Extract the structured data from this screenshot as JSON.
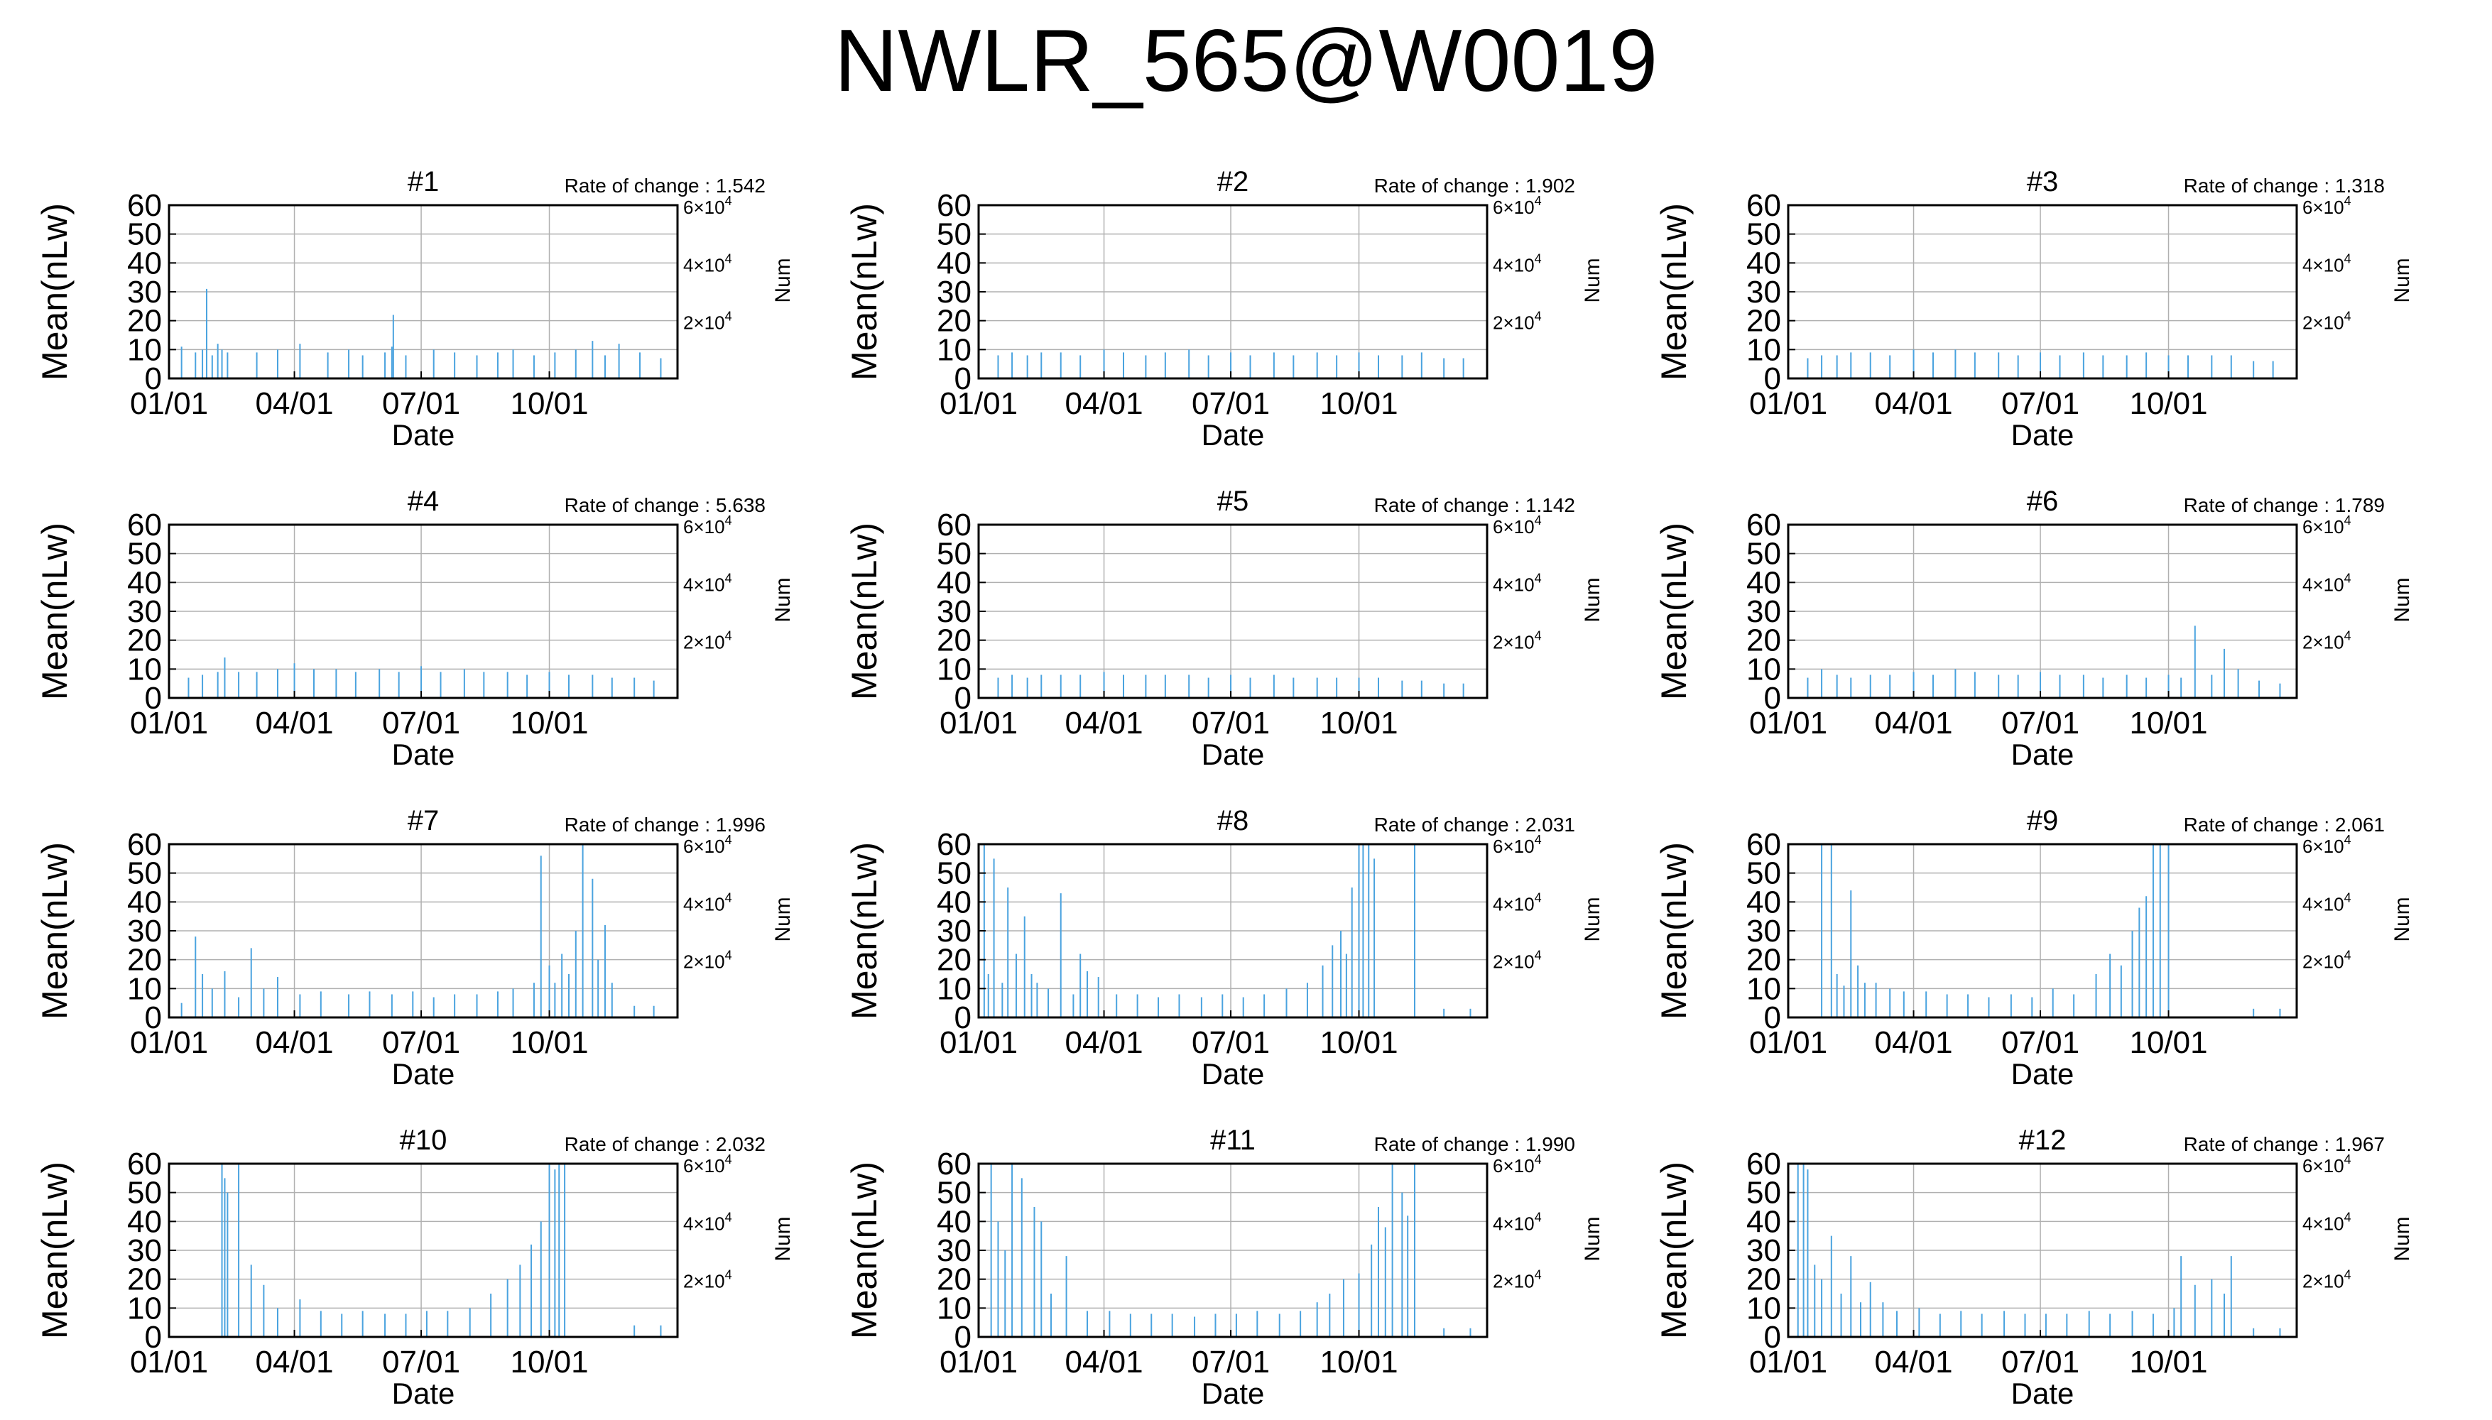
{
  "title": "NWLR_565@W0019",
  "colors": {
    "bar": "#4aa3df",
    "axis": "#000000",
    "grid": "#b0b0b0",
    "text": "#000000"
  },
  "shared_axes": {
    "xlabel": "Date",
    "ylabel": "Mean(nLw)",
    "y2label": "Num",
    "x_ticks": [
      "01/01",
      "04/01",
      "07/01",
      "10/01"
    ],
    "y_ticks": [
      "0",
      "10",
      "20",
      "30",
      "40",
      "50",
      "60"
    ],
    "y2_ticks": [
      {
        "base": "2×10",
        "exp": "4"
      },
      {
        "base": "4×10",
        "exp": "4"
      },
      {
        "base": "6×10",
        "exp": "4"
      }
    ],
    "ylim": [
      0,
      60
    ],
    "y2lim": [
      0,
      60000
    ],
    "grid": true
  },
  "chart_data": [
    {
      "type": "bar",
      "title": "#1",
      "rate_label": "Rate of change : 1.542",
      "x": [
        "01-10",
        "01-20",
        "01-25",
        "01-28",
        "02-01",
        "02-05",
        "02-08",
        "02-12",
        "03-05",
        "03-20",
        "04-05",
        "04-25",
        "05-10",
        "05-20",
        "06-05",
        "06-10",
        "06-11",
        "06-20",
        "07-10",
        "07-25",
        "08-10",
        "08-25",
        "09-05",
        "09-20",
        "10-05",
        "10-20",
        "11-01",
        "11-10",
        "11-20",
        "12-05",
        "12-20"
      ],
      "y": [
        11,
        9,
        10,
        31,
        8,
        12,
        10,
        9,
        9,
        10,
        12,
        9,
        10,
        8,
        9,
        11,
        22,
        8,
        10,
        9,
        8,
        9,
        10,
        8,
        9,
        10,
        13,
        8,
        12,
        9,
        7
      ]
    },
    {
      "type": "bar",
      "title": "#2",
      "rate_label": "Rate of change : 1.902",
      "x": [
        "01-15",
        "01-25",
        "02-05",
        "02-15",
        "03-01",
        "03-15",
        "04-01",
        "04-15",
        "05-01",
        "05-15",
        "06-01",
        "06-15",
        "07-01",
        "07-15",
        "08-01",
        "08-15",
        "09-01",
        "09-15",
        "10-01",
        "10-15",
        "11-01",
        "11-15",
        "12-01",
        "12-15"
      ],
      "y": [
        8,
        9,
        8,
        9,
        9,
        8,
        10,
        9,
        8,
        9,
        10,
        8,
        9,
        8,
        9,
        8,
        9,
        8,
        9,
        8,
        8,
        9,
        7,
        7
      ]
    },
    {
      "type": "bar",
      "title": "#3",
      "rate_label": "Rate of change : 1.318",
      "x": [
        "01-15",
        "01-25",
        "02-05",
        "02-15",
        "03-01",
        "03-15",
        "04-01",
        "04-15",
        "05-01",
        "05-15",
        "06-01",
        "06-15",
        "07-01",
        "07-15",
        "08-01",
        "08-15",
        "09-01",
        "09-15",
        "10-01",
        "10-15",
        "11-01",
        "11-15",
        "12-01",
        "12-15"
      ],
      "y": [
        7,
        8,
        8,
        9,
        9,
        8,
        10,
        9,
        10,
        9,
        9,
        8,
        9,
        8,
        9,
        8,
        8,
        9,
        8,
        8,
        8,
        8,
        6,
        6
      ]
    },
    {
      "type": "bar",
      "title": "#4",
      "rate_label": "Rate of change : 5.638",
      "x": [
        "01-15",
        "01-25",
        "02-05",
        "02-10",
        "02-20",
        "03-05",
        "03-20",
        "04-01",
        "04-15",
        "05-01",
        "05-15",
        "06-01",
        "06-15",
        "07-01",
        "07-15",
        "08-01",
        "08-15",
        "09-01",
        "09-15",
        "10-01",
        "10-15",
        "11-01",
        "11-15",
        "12-01",
        "12-15"
      ],
      "y": [
        7,
        8,
        9,
        14,
        9,
        9,
        10,
        12,
        10,
        10,
        9,
        10,
        9,
        11,
        9,
        10,
        9,
        9,
        8,
        9,
        8,
        8,
        7,
        7,
        6
      ]
    },
    {
      "type": "bar",
      "title": "#5",
      "rate_label": "Rate of change : 1.142",
      "x": [
        "01-15",
        "01-25",
        "02-05",
        "02-15",
        "03-01",
        "03-15",
        "04-01",
        "04-15",
        "05-01",
        "05-15",
        "06-01",
        "06-15",
        "07-01",
        "07-15",
        "08-01",
        "08-15",
        "09-01",
        "09-15",
        "10-01",
        "10-15",
        "11-01",
        "11-15",
        "12-01",
        "12-15"
      ],
      "y": [
        7,
        8,
        7,
        8,
        8,
        8,
        9,
        8,
        8,
        8,
        8,
        7,
        8,
        7,
        8,
        7,
        7,
        7,
        7,
        7,
        6,
        6,
        5,
        5
      ]
    },
    {
      "type": "bar",
      "title": "#6",
      "rate_label": "Rate of change : 1.789",
      "x": [
        "01-15",
        "01-25",
        "02-05",
        "02-15",
        "03-01",
        "03-15",
        "04-01",
        "04-15",
        "05-01",
        "05-15",
        "06-01",
        "06-15",
        "07-01",
        "07-15",
        "08-01",
        "08-15",
        "09-01",
        "09-15",
        "10-01",
        "10-10",
        "10-20",
        "11-01",
        "11-10",
        "11-20",
        "12-05",
        "12-20"
      ],
      "y": [
        7,
        10,
        8,
        7,
        8,
        8,
        9,
        8,
        10,
        9,
        8,
        8,
        9,
        8,
        8,
        7,
        8,
        7,
        8,
        7,
        25,
        8,
        17,
        10,
        6,
        5
      ]
    },
    {
      "type": "bar",
      "title": "#7",
      "rate_label": "Rate of change : 1.996",
      "x": [
        "01-10",
        "01-20",
        "01-25",
        "02-01",
        "02-10",
        "02-20",
        "03-01",
        "03-10",
        "03-20",
        "04-05",
        "04-20",
        "05-10",
        "05-25",
        "06-10",
        "06-25",
        "07-10",
        "07-25",
        "08-10",
        "08-25",
        "09-05",
        "09-20",
        "09-25",
        "10-01",
        "10-05",
        "10-10",
        "10-15",
        "10-20",
        "10-25",
        "11-01",
        "11-05",
        "11-10",
        "11-15",
        "12-01",
        "12-15"
      ],
      "y": [
        5,
        28,
        15,
        10,
        16,
        7,
        24,
        10,
        14,
        8,
        9,
        8,
        9,
        8,
        9,
        7,
        8,
        8,
        9,
        10,
        12,
        56,
        18,
        12,
        22,
        15,
        30,
        60,
        48,
        20,
        32,
        12,
        4,
        4
      ]
    },
    {
      "type": "bar",
      "title": "#8",
      "rate_label": "Rate of change : 2.031",
      "x": [
        "01-05",
        "01-08",
        "01-12",
        "01-18",
        "01-22",
        "01-28",
        "02-03",
        "02-08",
        "02-12",
        "02-20",
        "03-01",
        "03-10",
        "03-15",
        "03-20",
        "03-28",
        "04-10",
        "04-25",
        "05-10",
        "05-25",
        "06-10",
        "06-25",
        "07-10",
        "07-25",
        "08-10",
        "08-25",
        "09-05",
        "09-12",
        "09-18",
        "09-22",
        "09-26",
        "10-01",
        "10-04",
        "10-08",
        "10-12",
        "11-10",
        "12-01",
        "12-20"
      ],
      "y": [
        60,
        15,
        55,
        12,
        45,
        22,
        35,
        15,
        12,
        10,
        43,
        8,
        22,
        16,
        14,
        8,
        8,
        7,
        8,
        7,
        8,
        7,
        8,
        10,
        12,
        18,
        25,
        30,
        22,
        45,
        60,
        60,
        60,
        55,
        60,
        3,
        3
      ]
    },
    {
      "type": "bar",
      "title": "#9",
      "rate_label": "Rate of change : 2.061",
      "x": [
        "01-25",
        "02-01",
        "02-05",
        "02-10",
        "02-15",
        "02-20",
        "02-25",
        "03-05",
        "03-15",
        "03-25",
        "04-10",
        "04-25",
        "05-10",
        "05-25",
        "06-10",
        "06-25",
        "07-10",
        "07-25",
        "08-10",
        "08-20",
        "08-28",
        "09-05",
        "09-10",
        "09-15",
        "09-20",
        "09-25",
        "10-01",
        "12-01",
        "12-20"
      ],
      "y": [
        60,
        60,
        15,
        11,
        44,
        18,
        12,
        12,
        10,
        9,
        9,
        8,
        8,
        7,
        8,
        7,
        10,
        8,
        15,
        22,
        18,
        30,
        38,
        42,
        60,
        60,
        60,
        3,
        3
      ]
    },
    {
      "type": "bar",
      "title": "#10",
      "rate_label": "Rate of change : 2.032",
      "x": [
        "02-08",
        "02-10",
        "02-12",
        "02-20",
        "03-01",
        "03-10",
        "03-20",
        "04-05",
        "04-20",
        "05-05",
        "05-20",
        "06-05",
        "06-20",
        "07-05",
        "07-20",
        "08-05",
        "08-20",
        "09-01",
        "09-10",
        "09-18",
        "09-25",
        "10-01",
        "10-05",
        "10-08",
        "10-12",
        "12-01",
        "12-20"
      ],
      "y": [
        60,
        55,
        50,
        60,
        25,
        18,
        10,
        13,
        9,
        8,
        9,
        8,
        8,
        9,
        9,
        10,
        15,
        20,
        25,
        32,
        40,
        60,
        58,
        60,
        60,
        4,
        4
      ]
    },
    {
      "type": "bar",
      "title": "#11",
      "rate_label": "Rate of change : 1.990",
      "x": [
        "01-10",
        "01-15",
        "01-20",
        "01-25",
        "02-01",
        "02-10",
        "02-15",
        "02-22",
        "03-05",
        "03-20",
        "04-05",
        "04-20",
        "05-05",
        "05-20",
        "06-05",
        "06-20",
        "07-05",
        "07-20",
        "08-05",
        "08-20",
        "09-01",
        "09-10",
        "09-20",
        "10-01",
        "10-10",
        "10-15",
        "10-20",
        "10-25",
        "11-01",
        "11-05",
        "11-10",
        "12-01",
        "12-20"
      ],
      "y": [
        60,
        40,
        30,
        60,
        55,
        45,
        40,
        15,
        28,
        9,
        9,
        8,
        8,
        8,
        7,
        8,
        8,
        9,
        8,
        9,
        12,
        15,
        20,
        22,
        32,
        45,
        38,
        60,
        50,
        42,
        60,
        3,
        3
      ]
    },
    {
      "type": "bar",
      "title": "#12",
      "rate_label": "Rate of change : 1.967",
      "x": [
        "01-08",
        "01-12",
        "01-15",
        "01-20",
        "01-25",
        "02-01",
        "02-08",
        "02-15",
        "02-22",
        "03-01",
        "03-10",
        "03-20",
        "04-05",
        "04-20",
        "05-05",
        "05-20",
        "06-05",
        "06-20",
        "07-05",
        "07-20",
        "08-05",
        "08-20",
        "09-05",
        "09-20",
        "10-05",
        "10-10",
        "10-20",
        "11-01",
        "11-10",
        "11-15",
        "12-01",
        "12-20"
      ],
      "y": [
        60,
        60,
        58,
        25,
        20,
        35,
        15,
        28,
        12,
        19,
        12,
        9,
        10,
        8,
        9,
        8,
        9,
        8,
        8,
        8,
        9,
        8,
        9,
        8,
        10,
        28,
        18,
        20,
        15,
        28,
        3,
        3
      ]
    }
  ]
}
